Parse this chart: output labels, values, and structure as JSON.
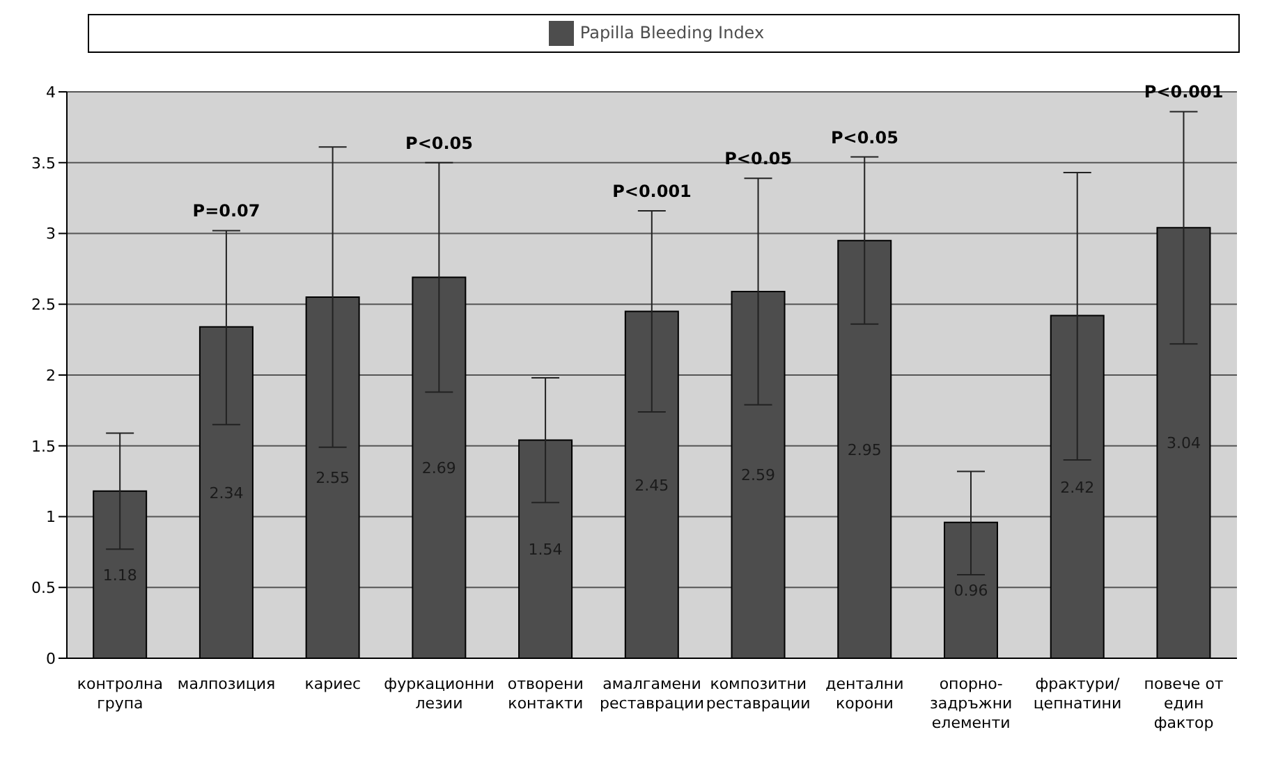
{
  "chart_data": {
    "type": "bar",
    "categories": [
      "контролна група",
      "малпозиция",
      "кариес",
      "фуркационни лезии",
      "отворени контакти",
      "амалгамени реставрации",
      "композитни реставрации",
      "дентални корони",
      "опорно-задръжни елементи",
      "фрактури/цепнатини",
      "повече от един фактор"
    ],
    "series": [
      {
        "name": "Papilla Bleeding Index",
        "color": "#4d4d4d",
        "values": [
          1.18,
          2.34,
          2.55,
          2.69,
          1.54,
          2.45,
          2.59,
          2.95,
          0.96,
          2.42,
          3.04
        ],
        "errors": [
          [
            0.77,
            1.59
          ],
          [
            1.65,
            3.02
          ],
          [
            1.49,
            3.61
          ],
          [
            1.88,
            3.5
          ],
          [
            1.1,
            1.98
          ],
          [
            1.74,
            3.16
          ],
          [
            1.79,
            3.39
          ],
          [
            2.36,
            3.54
          ],
          [
            0.59,
            1.32
          ],
          [
            1.4,
            3.43
          ],
          [
            2.22,
            3.86
          ]
        ]
      }
    ],
    "ylim": [
      0,
      4
    ],
    "yticks": [
      0,
      0.5,
      1,
      1.5,
      2,
      2.5,
      3,
      3.5,
      4
    ],
    "grid": "y",
    "legend": "top",
    "data_labels": true,
    "annotations": [
      "P=0.07",
      "P<0.05",
      "P<0.001",
      "P<0.05",
      "P<0.05",
      "P<0.001"
    ]
  }
}
